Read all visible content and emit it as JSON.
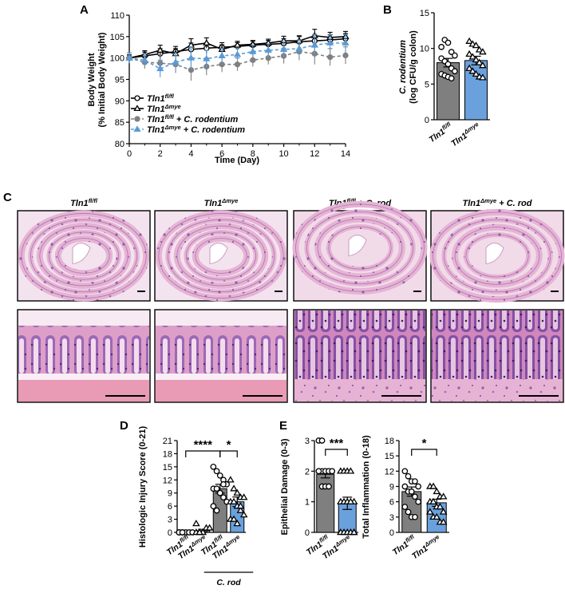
{
  "panels": {
    "A": "A",
    "B": "B",
    "C": "C",
    "D": "D",
    "E": "E"
  },
  "colors": {
    "gray": "#808080",
    "blue": "#5b9bd5",
    "black": "#000000",
    "bar_gray": "#7f7f7f",
    "bar_blue": "#6aa1dd",
    "he_pink": "#e4a2c8",
    "he_purple": "#8b5aa8"
  },
  "chart_data": [
    {
      "id": "A",
      "type": "line",
      "xlabel": "Time (Day)",
      "ylabel_lines": [
        "Body Weight",
        "(% Initial Body Weight)"
      ],
      "xticks": [
        "0",
        "2",
        "4",
        "6",
        "8",
        "10",
        "12",
        "14"
      ],
      "yticks": [
        "80",
        "85",
        "90",
        "95",
        "100",
        "105",
        "110"
      ],
      "xlim": [
        0,
        14
      ],
      "ylim": [
        80,
        110
      ],
      "x": [
        0,
        1,
        2,
        3,
        4,
        5,
        6,
        7,
        8,
        9,
        10,
        11,
        12,
        13,
        14
      ],
      "series": [
        {
          "name_base": "Tln1",
          "name_sup": "fl/fl",
          "name_suffix": "",
          "marker": "circle-open",
          "color": "#000000",
          "dash": "none",
          "values": [
            100,
            100.5,
            101,
            101.5,
            102,
            102.3,
            102.5,
            102.7,
            103,
            103.2,
            103.4,
            103.8,
            104,
            104.2,
            104.5
          ]
        },
        {
          "name_base": "Tln1",
          "name_sup": "Δmye",
          "name_suffix": "",
          "marker": "triangle-open",
          "color": "#000000",
          "dash": "none",
          "values": [
            100,
            100.8,
            101.8,
            101,
            103,
            103.5,
            102,
            103,
            103.2,
            103.5,
            104,
            104,
            105.2,
            104.8,
            105
          ]
        },
        {
          "name_base": "Tln1",
          "name_sup": "fl/fl",
          "name_suffix": " + C. rodentium",
          "marker": "circle-filled",
          "color": "#808080",
          "dash": "4,3",
          "values": [
            100,
            99,
            98.8,
            98.5,
            97.2,
            98,
            98.5,
            98.5,
            99.5,
            100,
            100.5,
            101.5,
            101,
            100.2,
            100.6
          ]
        },
        {
          "name_base": "Tln1",
          "name_sup": "Δmye",
          "name_suffix": " + C. rodentium",
          "marker": "triangle-filled",
          "color": "#5b9bd5",
          "dash": "4,3",
          "values": [
            100,
            99.5,
            97.5,
            99,
            100,
            99.8,
            100.5,
            100.8,
            101.5,
            101.8,
            102,
            102.2,
            103,
            103.5,
            103.5
          ]
        }
      ],
      "errors": [
        1.2,
        1.5,
        2,
        2,
        2.5,
        2,
        1.8,
        1.5,
        1.5,
        1.5,
        1.8,
        2,
        2.5,
        2,
        2
      ]
    },
    {
      "id": "B",
      "type": "bar",
      "ylabel_lines": [
        "C. rodentium",
        "(log CFU/g colon)"
      ],
      "yticks": [
        "0",
        "5",
        "10",
        "15"
      ],
      "ylim": [
        0,
        15
      ],
      "categories": [
        {
          "base": "Tln1",
          "sup": "fl/fl"
        },
        {
          "base": "Tln1",
          "sup": "Δmye"
        }
      ],
      "values": [
        8.0,
        8.3
      ],
      "errors": [
        0.6,
        0.6
      ],
      "points": [
        [
          10.2,
          11.2,
          10.8,
          9.5,
          9.0,
          8.6,
          8.2,
          7.8,
          7.2,
          6.8,
          6.4,
          6.2,
          6.0,
          5.8
        ],
        [
          11.0,
          10.6,
          10.4,
          9.8,
          9.5,
          9.2,
          8.8,
          8.4,
          8.0,
          7.6,
          7.2,
          6.8,
          6.4,
          6.0,
          5.9
        ]
      ]
    },
    {
      "id": "D",
      "type": "bar",
      "ylabel": "Histologic Injury Score (0-21)",
      "yticks": [
        "0",
        "3",
        "6",
        "9",
        "12",
        "15",
        "18",
        "21"
      ],
      "ylim": [
        0,
        21
      ],
      "categories": [
        {
          "base": "Tln1",
          "sup": "fl/fl"
        },
        {
          "base": "Tln1",
          "sup": "Δmye"
        },
        {
          "base": "Tln1",
          "sup": "fl/fl"
        },
        {
          "base": "Tln1",
          "sup": "Δmye"
        }
      ],
      "group_label": "C. rod",
      "values": [
        0.1,
        0.4,
        10.0,
        7.0
      ],
      "errors": [
        0.1,
        0.3,
        1.0,
        1.1
      ],
      "points": [
        [
          0,
          0,
          0,
          0,
          0,
          0,
          0
        ],
        [
          0,
          0,
          0,
          1,
          1,
          2,
          0
        ],
        [
          15,
          14,
          13,
          12,
          11,
          10,
          10,
          9,
          8,
          7,
          6,
          5,
          9,
          11
        ],
        [
          12,
          10,
          9,
          8,
          8,
          7,
          7,
          6,
          5,
          4,
          3,
          3,
          2,
          6
        ]
      ],
      "significance": [
        {
          "label": "****",
          "from": 0,
          "to": 2
        },
        {
          "label": "*",
          "from": 2,
          "to": 3
        }
      ]
    },
    {
      "id": "E1",
      "type": "bar",
      "ylabel": "Epithelial Damage (0-3)",
      "yticks": [
        "0",
        "1",
        "2",
        "3"
      ],
      "ylim": [
        0,
        3
      ],
      "categories": [
        {
          "base": "Tln1",
          "sup": "fl/fl"
        },
        {
          "base": "Tln1",
          "sup": "Δmye"
        }
      ],
      "values": [
        1.9,
        0.95
      ],
      "errors": [
        0.12,
        0.2
      ],
      "points": [
        [
          3,
          3,
          2,
          2,
          2,
          2,
          2,
          2,
          2,
          2,
          2,
          1.5,
          1.5,
          1.5
        ],
        [
          2,
          2,
          2,
          2,
          1,
          1,
          1,
          1,
          1,
          0,
          0,
          0,
          0,
          0,
          0
        ]
      ],
      "significance": [
        {
          "label": "***",
          "from": 0,
          "to": 1
        }
      ]
    },
    {
      "id": "E2",
      "type": "bar",
      "ylabel": "Total Inflammation (0-18)",
      "yticks": [
        "0",
        "3",
        "6",
        "9",
        "12",
        "15",
        "18"
      ],
      "ylim": [
        0,
        18
      ],
      "categories": [
        {
          "base": "Tln1",
          "sup": "fl/fl"
        },
        {
          "base": "Tln1",
          "sup": "Δmye"
        }
      ],
      "values": [
        8.0,
        5.8
      ],
      "errors": [
        0.9,
        0.7
      ],
      "points": [
        [
          12,
          11,
          10,
          10,
          9,
          9,
          8,
          8,
          7,
          6,
          5,
          4,
          3,
          3
        ],
        [
          9,
          9,
          8,
          7,
          7,
          6,
          6,
          5,
          5,
          4,
          4,
          3,
          3,
          2,
          2
        ]
      ],
      "significance": [
        {
          "label": "*",
          "from": 0,
          "to": 1
        }
      ]
    }
  ],
  "legend": [
    {
      "base": "Tln1",
      "sup": "fl/fl",
      "suffix": ""
    },
    {
      "base": "Tln1",
      "sup": "Δmye",
      "suffix": ""
    },
    {
      "base": "Tln1",
      "sup": "fl/fl",
      "suffix": " + C. rodentium"
    },
    {
      "base": "Tln1",
      "sup": "Δmye",
      "suffix": " + C. rodentium"
    }
  ],
  "micrographs": {
    "columns": [
      {
        "base": "Tln1",
        "sup": "fl/fl",
        "suffix": ""
      },
      {
        "base": "Tln1",
        "sup": "Δmye",
        "suffix": ""
      },
      {
        "base": "Tln1",
        "sup": "fl/fl",
        "suffix": " + C. rod"
      },
      {
        "base": "Tln1",
        "sup": "Δmye",
        "suffix": " + C. rod"
      }
    ]
  }
}
